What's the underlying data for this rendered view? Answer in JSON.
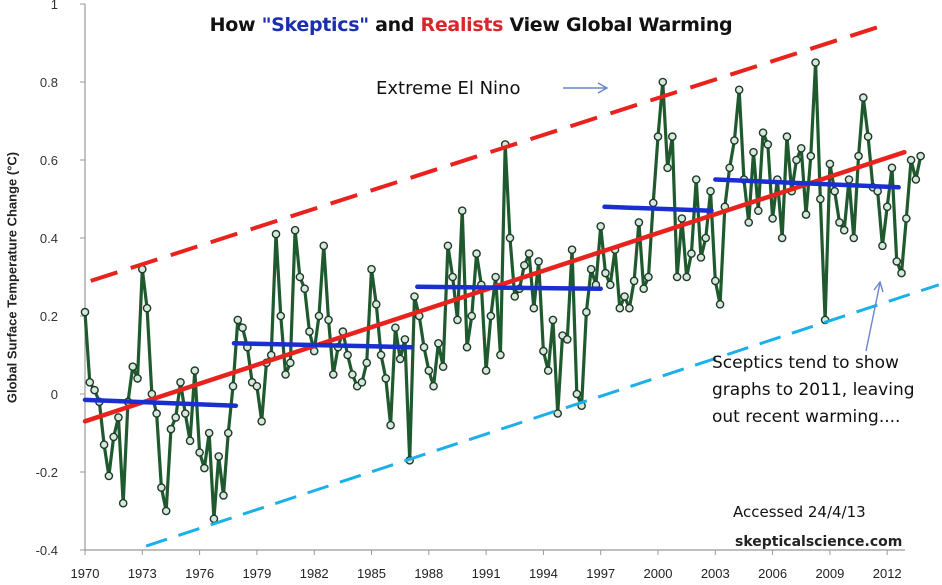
{
  "chart_data": {
    "type": "line",
    "title": {
      "prefix": "How ",
      "skeptics": "\"Skeptics\"",
      "middle": " and ",
      "realists": "Realists",
      "suffix": " View Global Warming"
    },
    "xlabel": "",
    "ylabel": "Global Surface Temperature Change (°C)",
    "xlim": [
      1970,
      2013
    ],
    "ylim": [
      -0.4,
      1
    ],
    "x_ticks": [
      "1970",
      "1973",
      "1976",
      "1979",
      "1982",
      "1985",
      "1988",
      "1991",
      "1994",
      "1997",
      "2000",
      "2003",
      "2006",
      "2009",
      "2012"
    ],
    "y_ticks": [
      "1",
      "0.8",
      "0.6",
      "0.4",
      "0.2",
      "0",
      "-0.2",
      "-0.4"
    ],
    "grid": false,
    "colors": {
      "series": "#1e5a2e",
      "marker_fill": "#d8e8e0",
      "trend": "#e8231e",
      "skeptic": "#1a2fd0",
      "lower": "#1ab0e8",
      "title_skeptics": "#1a2fb0",
      "title_realists": "#d8262a",
      "arrow": "#6a86c8"
    },
    "series": [
      {
        "name": "Global Surface Temperature",
        "x_start": 1970.0,
        "x_step": 0.25,
        "values": [
          0.21,
          0.03,
          0.01,
          -0.02,
          -0.13,
          -0.21,
          -0.11,
          -0.06,
          -0.28,
          -0.02,
          0.07,
          0.04,
          0.32,
          0.22,
          0.0,
          -0.05,
          -0.24,
          -0.3,
          -0.09,
          -0.06,
          0.03,
          -0.05,
          -0.12,
          0.06,
          -0.15,
          -0.19,
          -0.1,
          -0.32,
          -0.16,
          -0.26,
          -0.1,
          0.02,
          0.19,
          0.17,
          0.12,
          0.03,
          0.02,
          -0.07,
          0.08,
          0.1,
          0.41,
          0.2,
          0.05,
          0.08,
          0.42,
          0.3,
          0.27,
          0.16,
          0.11,
          0.2,
          0.38,
          0.19,
          0.05,
          0.12,
          0.16,
          0.1,
          0.05,
          0.02,
          0.03,
          0.08,
          0.32,
          0.23,
          0.1,
          0.04,
          -0.08,
          0.17,
          0.09,
          0.14,
          -0.17,
          0.25,
          0.2,
          0.12,
          0.06,
          0.02,
          0.13,
          0.07,
          0.38,
          0.3,
          0.19,
          0.47,
          0.12,
          0.2,
          0.36,
          0.28,
          0.06,
          0.2,
          0.3,
          0.1,
          0.64,
          0.4,
          0.25,
          0.27,
          0.33,
          0.36,
          0.22,
          0.34,
          0.11,
          0.06,
          0.19,
          -0.05,
          0.15,
          0.14,
          0.37,
          0.0,
          -0.03,
          0.21,
          0.32,
          0.28,
          0.43,
          0.31,
          0.28,
          0.37,
          0.22,
          0.25,
          0.22,
          0.29,
          0.44,
          0.27,
          0.3,
          0.49,
          0.66,
          0.8,
          0.58,
          0.66,
          0.3,
          0.45,
          0.3,
          0.36,
          0.55,
          0.35,
          0.4,
          0.52,
          0.29,
          0.23,
          0.48,
          0.58,
          0.65,
          0.78,
          0.55,
          0.44,
          0.62,
          0.47,
          0.67,
          0.64,
          0.45,
          0.55,
          0.4,
          0.66,
          0.52,
          0.6,
          0.63,
          0.46,
          0.61,
          0.85,
          0.5,
          0.19,
          0.59,
          0.52,
          0.44,
          0.42,
          0.55,
          0.4,
          0.61,
          0.76,
          0.66,
          0.53,
          0.52,
          0.38,
          0.48,
          0.58,
          0.34,
          0.31,
          0.45,
          0.6,
          0.55,
          0.61
        ]
      },
      {
        "name": "Realist trend",
        "x": [
          1970,
          2012.9
        ],
        "values": [
          -0.07,
          0.62
        ]
      },
      {
        "name": "Upper bound",
        "x": [
          1970.3,
          2012.1
        ],
        "values": [
          0.29,
          0.95
        ]
      },
      {
        "name": "Lower bound",
        "x": [
          1973.2,
          2014.7
        ],
        "values": [
          -0.39,
          0.28
        ]
      },
      {
        "name": "Skeptic steps",
        "segments": [
          {
            "x": [
              1970,
              1977.9
            ],
            "values": [
              -0.015,
              -0.03
            ]
          },
          {
            "x": [
              1977.8,
              1987.1
            ],
            "values": [
              0.13,
              0.12
            ]
          },
          {
            "x": [
              1987.4,
              1997.0
            ],
            "values": [
              0.275,
              0.27
            ]
          },
          {
            "x": [
              1997.2,
              2002.8
            ],
            "values": [
              0.48,
              0.47
            ]
          },
          {
            "x": [
              2003.0,
              2012.6
            ],
            "values": [
              0.55,
              0.53
            ]
          }
        ]
      }
    ],
    "annotations": {
      "el_nino": "Extreme El Nino",
      "sceptics_lines": [
        "Sceptics tend to show",
        "graphs to 2011, leaving",
        "out recent warming...."
      ],
      "accessed": "Accessed 24/4/13",
      "source": "skepticalscience.com"
    }
  }
}
